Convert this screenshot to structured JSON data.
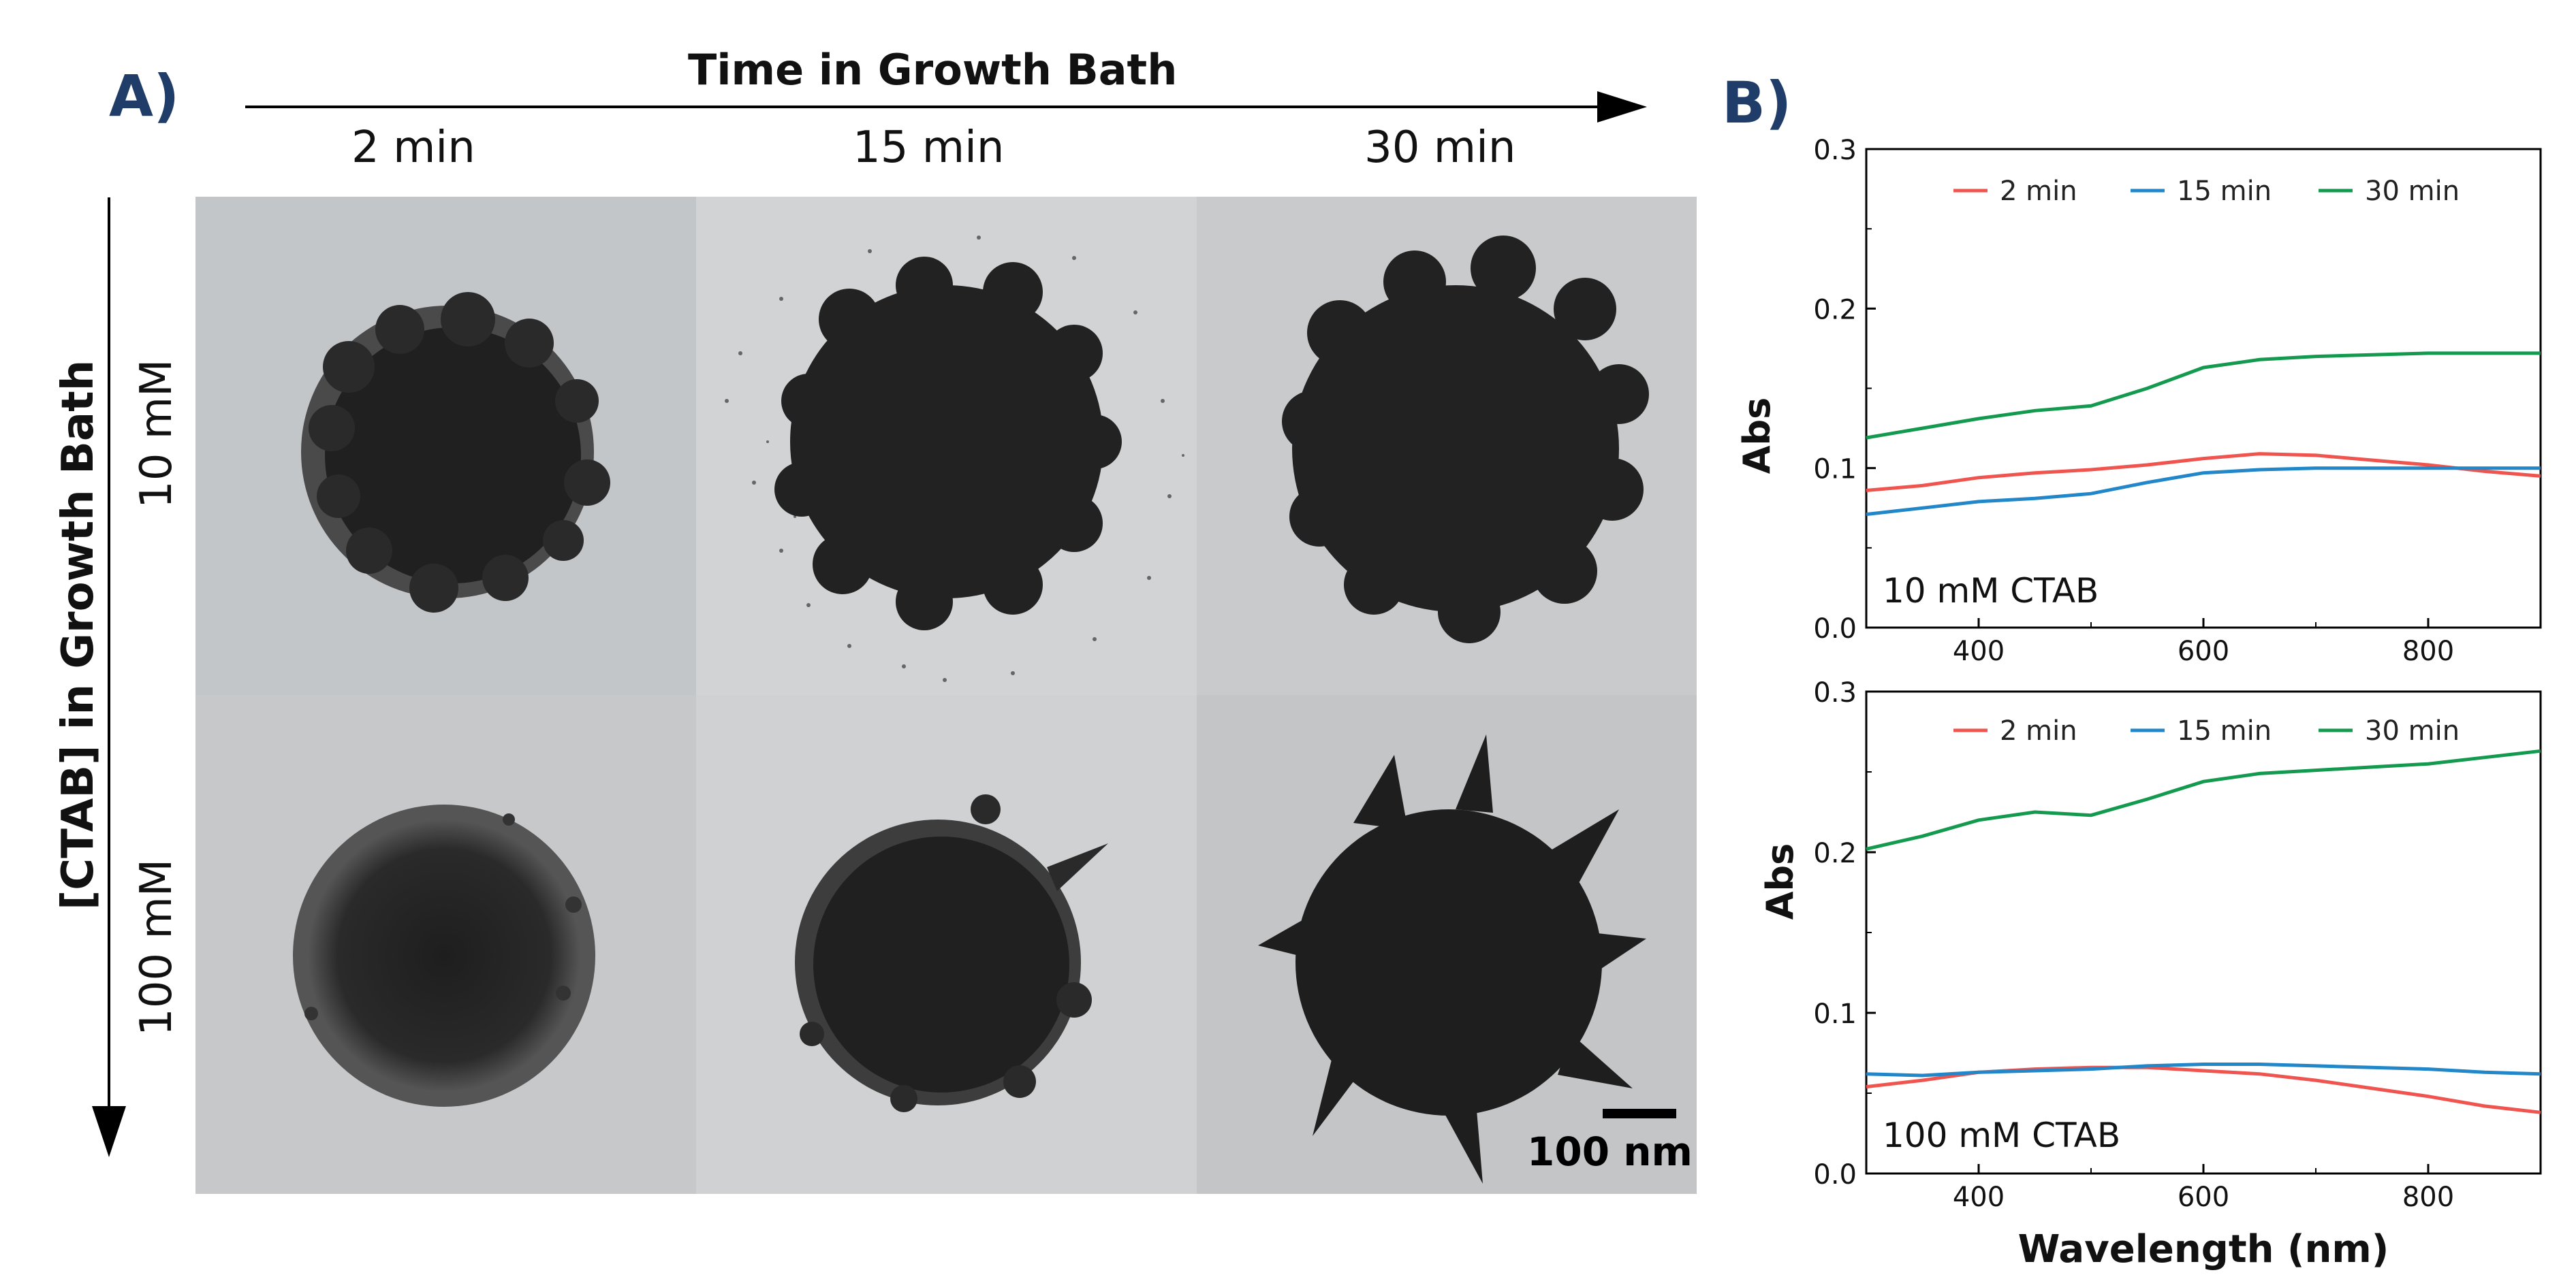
{
  "panel_a": {
    "label": "A)",
    "top_axis_title": "Time in Growth Bath",
    "side_axis_title": "[CTAB] in Growth Bath",
    "columns": [
      "2 min",
      "15 min",
      "30 min"
    ],
    "rows": [
      "10 mM",
      "100 mM"
    ],
    "scale_bar": "100 nm"
  },
  "panel_b": {
    "label": "B)",
    "ylabel": "Abs",
    "xlabel": "Wavelength (nm)"
  },
  "colors": {
    "2 min": "#f0544f",
    "15 min": "#2187c9",
    "30 min": "#149a4f"
  },
  "chart_data": [
    {
      "type": "line",
      "annotation": "10 mM CTAB",
      "xlabel": "",
      "ylabel": "Abs",
      "xlim": [
        300,
        900
      ],
      "ylim": [
        0.0,
        0.3
      ],
      "xticks": [
        400,
        600,
        800
      ],
      "yticks": [
        "0.0",
        "0.1",
        "0.2",
        "0.3"
      ],
      "legend_position": "top",
      "x": [
        300,
        350,
        400,
        450,
        500,
        550,
        600,
        650,
        700,
        750,
        800,
        850,
        900
      ],
      "series": [
        {
          "name": "2 min",
          "values": [
            0.086,
            0.089,
            0.094,
            0.097,
            0.099,
            0.102,
            0.106,
            0.109,
            0.108,
            0.105,
            0.102,
            0.098,
            0.095
          ]
        },
        {
          "name": "15 min",
          "values": [
            0.071,
            0.075,
            0.079,
            0.081,
            0.084,
            0.091,
            0.097,
            0.099,
            0.1,
            0.1,
            0.1,
            0.1,
            0.1
          ]
        },
        {
          "name": "30 min",
          "values": [
            0.119,
            0.125,
            0.131,
            0.136,
            0.139,
            0.15,
            0.163,
            0.168,
            0.17,
            0.171,
            0.172,
            0.172,
            0.172
          ]
        }
      ]
    },
    {
      "type": "line",
      "annotation": "100 mM CTAB",
      "xlabel": "Wavelength (nm)",
      "ylabel": "Abs",
      "xlim": [
        300,
        900
      ],
      "ylim": [
        0.0,
        0.3
      ],
      "xticks": [
        400,
        600,
        800
      ],
      "yticks": [
        "0.0",
        "0.1",
        "0.2",
        "0.3"
      ],
      "legend_position": "top",
      "x": [
        300,
        350,
        400,
        450,
        500,
        550,
        600,
        650,
        700,
        750,
        800,
        850,
        900
      ],
      "series": [
        {
          "name": "2 min",
          "values": [
            0.054,
            0.058,
            0.063,
            0.065,
            0.066,
            0.066,
            0.064,
            0.062,
            0.058,
            0.053,
            0.048,
            0.042,
            0.038
          ]
        },
        {
          "name": "15 min",
          "values": [
            0.062,
            0.061,
            0.063,
            0.064,
            0.065,
            0.067,
            0.068,
            0.068,
            0.067,
            0.066,
            0.065,
            0.063,
            0.062
          ]
        },
        {
          "name": "30 min",
          "values": [
            0.202,
            0.21,
            0.22,
            0.225,
            0.223,
            0.233,
            0.244,
            0.249,
            0.251,
            0.253,
            0.255,
            0.259,
            0.263
          ]
        }
      ]
    }
  ]
}
